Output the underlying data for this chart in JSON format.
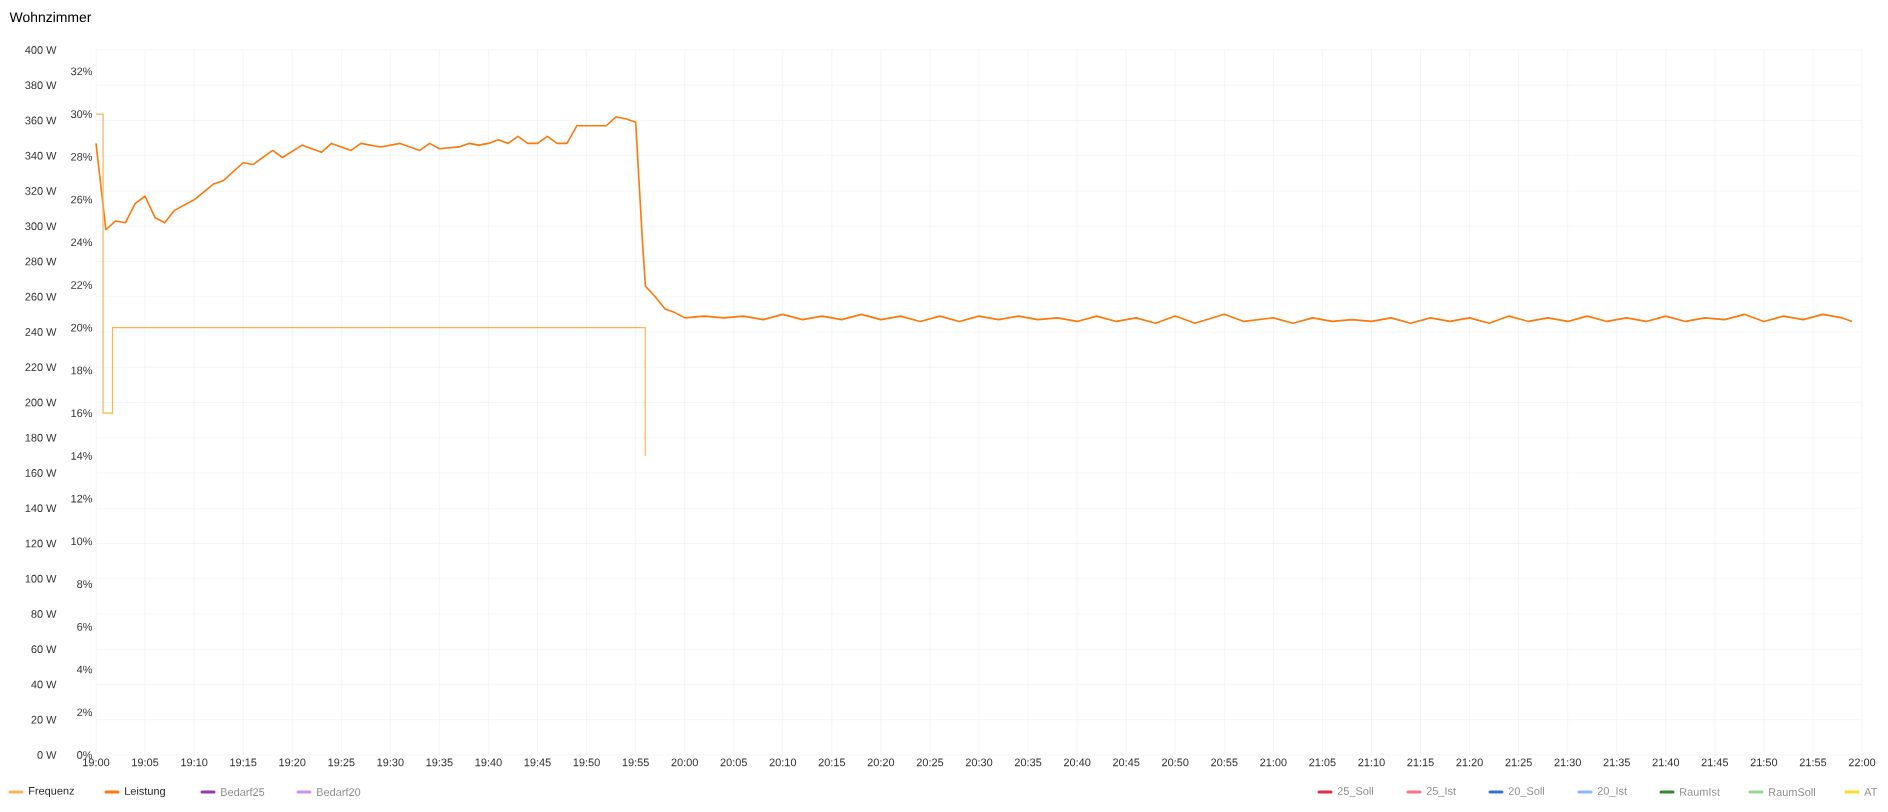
{
  "chart_data": {
    "type": "line",
    "title": "Wohnzimmer",
    "xlim": [
      19,
      22
    ],
    "xticks": [
      {
        "value": 19,
        "label": "19:00"
      },
      {
        "value": 19.0833,
        "label": "19:05"
      },
      {
        "value": 19.1667,
        "label": "19:10"
      },
      {
        "value": 19.25,
        "label": "19:15"
      },
      {
        "value": 19.3333,
        "label": "19:20"
      },
      {
        "value": 19.4167,
        "label": "19:25"
      },
      {
        "value": 19.5,
        "label": "19:30"
      },
      {
        "value": 19.5833,
        "label": "19:35"
      },
      {
        "value": 19.6667,
        "label": "19:40"
      },
      {
        "value": 19.75,
        "label": "19:45"
      },
      {
        "value": 19.8333,
        "label": "19:50"
      },
      {
        "value": 19.9167,
        "label": "19:55"
      },
      {
        "value": 20,
        "label": "20:00"
      },
      {
        "value": 20.0833,
        "label": "20:05"
      },
      {
        "value": 20.1667,
        "label": "20:10"
      },
      {
        "value": 20.25,
        "label": "20:15"
      },
      {
        "value": 20.3333,
        "label": "20:20"
      },
      {
        "value": 20.4167,
        "label": "20:25"
      },
      {
        "value": 20.5,
        "label": "20:30"
      },
      {
        "value": 20.5833,
        "label": "20:35"
      },
      {
        "value": 20.6667,
        "label": "20:40"
      },
      {
        "value": 20.75,
        "label": "20:45"
      },
      {
        "value": 20.8333,
        "label": "20:50"
      },
      {
        "value": 20.9167,
        "label": "20:55"
      },
      {
        "value": 21,
        "label": "21:00"
      },
      {
        "value": 21.0833,
        "label": "21:05"
      },
      {
        "value": 21.1667,
        "label": "21:10"
      },
      {
        "value": 21.25,
        "label": "21:15"
      },
      {
        "value": 21.3333,
        "label": "21:20"
      },
      {
        "value": 21.4167,
        "label": "21:25"
      },
      {
        "value": 21.5,
        "label": "21:30"
      },
      {
        "value": 21.5833,
        "label": "21:35"
      },
      {
        "value": 21.6667,
        "label": "21:40"
      },
      {
        "value": 21.75,
        "label": "21:45"
      },
      {
        "value": 21.8333,
        "label": "21:50"
      },
      {
        "value": 21.9167,
        "label": "21:55"
      },
      {
        "value": 22,
        "label": "22:00"
      }
    ],
    "ylim": [
      0,
      400
    ],
    "yticks": [
      {
        "value": 0,
        "label": "0 W"
      },
      {
        "value": 20,
        "label": "20 W"
      },
      {
        "value": 40,
        "label": "40 W"
      },
      {
        "value": 60,
        "label": "60 W"
      },
      {
        "value": 80,
        "label": "80 W"
      },
      {
        "value": 100,
        "label": "100 W"
      },
      {
        "value": 120,
        "label": "120 W"
      },
      {
        "value": 140,
        "label": "140 W"
      },
      {
        "value": 160,
        "label": "160 W"
      },
      {
        "value": 180,
        "label": "180 W"
      },
      {
        "value": 200,
        "label": "200 W"
      },
      {
        "value": 220,
        "label": "220 W"
      },
      {
        "value": 240,
        "label": "240 W"
      },
      {
        "value": 260,
        "label": "260 W"
      },
      {
        "value": 280,
        "label": "280 W"
      },
      {
        "value": 300,
        "label": "300 W"
      },
      {
        "value": 320,
        "label": "320 W"
      },
      {
        "value": 340,
        "label": "340 W"
      },
      {
        "value": 360,
        "label": "360 W"
      },
      {
        "value": 380,
        "label": "380 W"
      },
      {
        "value": 400,
        "label": "400 W"
      }
    ],
    "y2lim": [
      0,
      33
    ],
    "y2ticks": [
      {
        "value": 0,
        "label": "0%"
      },
      {
        "value": 2,
        "label": "2%"
      },
      {
        "value": 4,
        "label": "4%"
      },
      {
        "value": 6,
        "label": "6%"
      },
      {
        "value": 8,
        "label": "8%"
      },
      {
        "value": 10,
        "label": "10%"
      },
      {
        "value": 12,
        "label": "12%"
      },
      {
        "value": 14,
        "label": "14%"
      },
      {
        "value": 16,
        "label": "16%"
      },
      {
        "value": 18,
        "label": "18%"
      },
      {
        "value": 20,
        "label": "20%"
      },
      {
        "value": 22,
        "label": "22%"
      },
      {
        "value": 24,
        "label": "24%"
      },
      {
        "value": 26,
        "label": "26%"
      },
      {
        "value": 28,
        "label": "28%"
      },
      {
        "value": 30,
        "label": "30%"
      },
      {
        "value": 32,
        "label": "32%"
      }
    ],
    "grid": true,
    "legend": "bottom",
    "marker": "none",
    "line_style": "solid",
    "series": [
      {
        "name": "Frequenz",
        "color": "#ffb357",
        "axis": "y2",
        "x": [
          19,
          19.012,
          19.012,
          19.028,
          19.028,
          19.933,
          19.933
        ],
        "values": [
          30,
          30,
          16,
          16,
          20,
          20,
          14
        ]
      },
      {
        "name": "Leistung",
        "color": "#ff780a",
        "x": [
          19,
          19.0167,
          19.0333,
          19.05,
          19.0667,
          19.0833,
          19.1,
          19.1167,
          19.1333,
          19.1667,
          19.2,
          19.2167,
          19.25,
          19.2667,
          19.3,
          19.3167,
          19.35,
          19.3833,
          19.4,
          19.4333,
          19.45,
          19.4833,
          19.5167,
          19.55,
          19.5667,
          19.5833,
          19.6167,
          19.6333,
          19.65,
          19.6667,
          19.6833,
          19.7,
          19.7167,
          19.7333,
          19.75,
          19.7667,
          19.7833,
          19.8,
          19.8167,
          19.85,
          19.8667,
          19.8833,
          19.9,
          19.9167,
          19.9283,
          19.9333,
          19.95,
          19.9667,
          19.9833,
          20,
          20.0333,
          20.0667,
          20.1,
          20.1333,
          20.1667,
          20.2,
          20.2333,
          20.2667,
          20.3,
          20.3333,
          20.3667,
          20.4,
          20.4333,
          20.4667,
          20.5,
          20.5333,
          20.5667,
          20.6,
          20.6333,
          20.6667,
          20.7,
          20.7333,
          20.7667,
          20.8,
          20.8333,
          20.8667,
          20.9167,
          20.95,
          21,
          21.0333,
          21.0667,
          21.1,
          21.1333,
          21.1667,
          21.2,
          21.2333,
          21.2667,
          21.3,
          21.3333,
          21.3667,
          21.4,
          21.4333,
          21.4667,
          21.5,
          21.5333,
          21.5667,
          21.6,
          21.6333,
          21.6667,
          21.7,
          21.7333,
          21.7667,
          21.8,
          21.8333,
          21.8667,
          21.9,
          21.9333,
          21.9667,
          21.983
        ],
        "values": [
          347,
          298,
          303,
          302,
          313,
          317,
          305,
          302,
          309,
          315,
          324,
          326,
          336,
          335,
          343,
          339,
          346,
          342,
          347,
          343,
          347,
          345,
          347,
          343,
          347,
          344,
          345,
          347,
          346,
          347,
          349,
          347,
          351,
          347,
          347,
          351,
          347,
          347,
          357,
          357,
          357,
          362,
          361,
          359,
          291,
          266,
          260,
          253,
          251,
          248,
          249,
          248,
          249,
          247,
          250,
          247,
          249,
          247,
          250,
          247,
          249,
          246,
          249,
          246,
          249,
          247,
          249,
          247,
          248,
          246,
          249,
          246,
          248,
          245,
          249,
          245,
          250,
          246,
          248,
          245,
          248,
          246,
          247,
          246,
          248,
          245,
          248,
          246,
          248,
          245,
          249,
          246,
          248,
          246,
          249,
          246,
          248,
          246,
          249,
          246,
          248,
          247,
          250,
          246,
          249,
          247,
          250,
          248,
          246
        ]
      },
      {
        "name": "Bedarf25",
        "color": "#8f3bb8"
      },
      {
        "name": "Bedarf20",
        "color": "#ca95e5"
      },
      {
        "name": "25_Soll",
        "color": "#e02f44"
      },
      {
        "name": "25_Ist",
        "color": "#ff7383"
      },
      {
        "name": "20_Soll",
        "color": "#3274d9"
      },
      {
        "name": "20_Ist",
        "color": "#8ab8ff"
      },
      {
        "name": "RaumIst",
        "color": "#37872d"
      },
      {
        "name": "RaumSoll",
        "color": "#96d98d"
      },
      {
        "name": "AT",
        "color": "#fade2a"
      }
    ]
  }
}
